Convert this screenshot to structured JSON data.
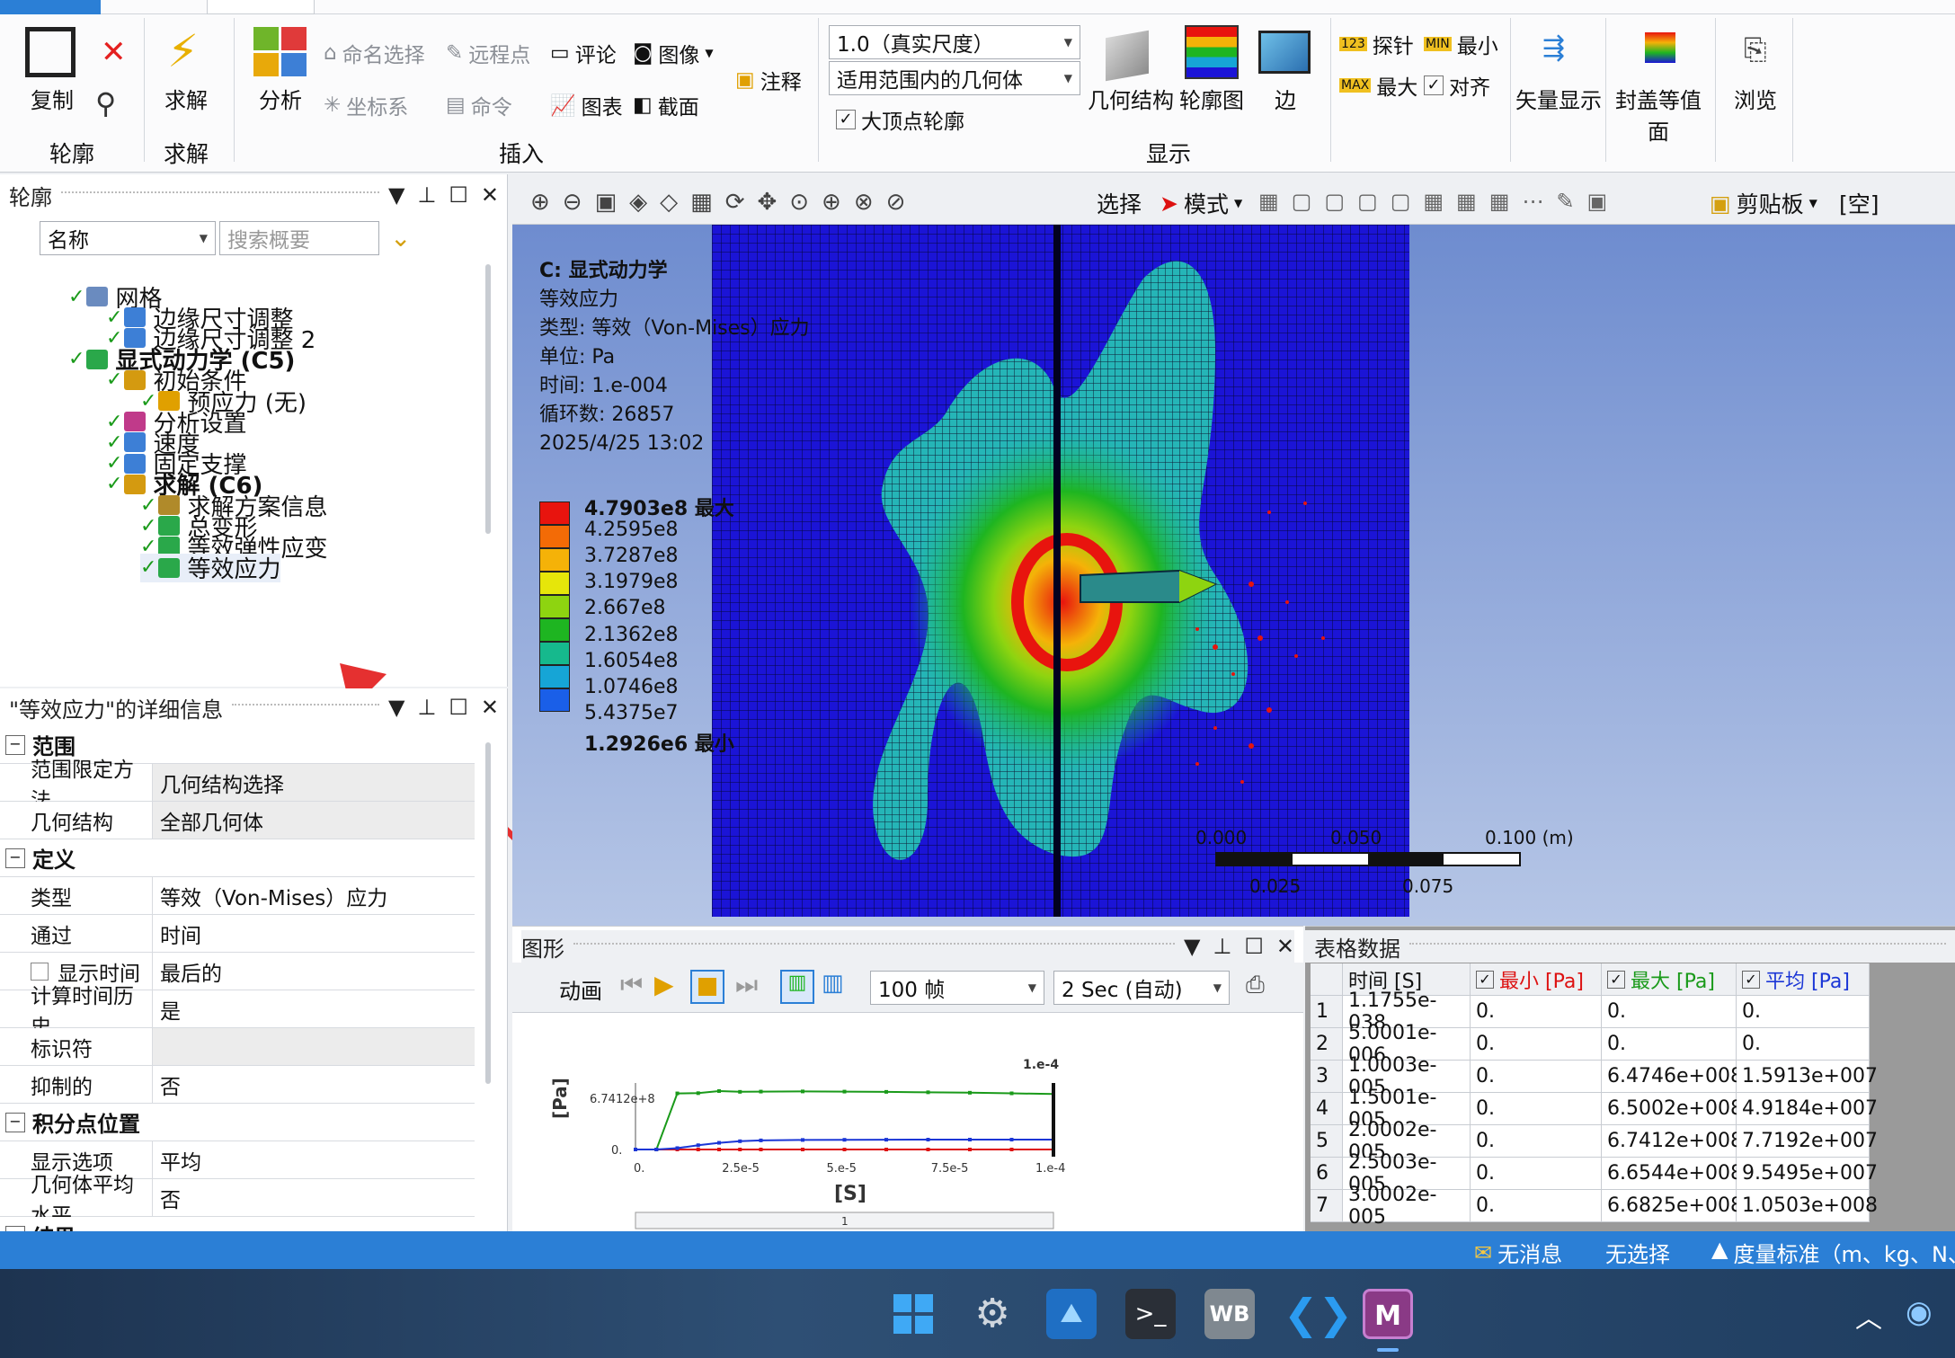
{
  "ribbon": {
    "copy_label": "复制",
    "outline_group": "轮廓",
    "solve_label": "求解",
    "solve_group": "求解",
    "analysis_label": "分析",
    "named_selection": "命名选择",
    "remote_point": "远程点",
    "comment": "评论",
    "image": "图像",
    "coord_system": "坐标系",
    "command": "命令",
    "chart": "图表",
    "section": "截面",
    "annotation": "注释",
    "insert_group": "插入",
    "scale_value": "1.0（真实尺度）",
    "geom_scope": "适用范围内的几何体",
    "big_vertex_outline": "大顶点轮廓",
    "geometry_label": "几何结构",
    "contour_label": "轮廓图",
    "edge_label": "边",
    "display_group": "显示",
    "probe": "探针",
    "min": "最小",
    "max": "最大",
    "align": "对齐",
    "vector_display": "矢量显示",
    "capped_iso": "封盖等值面",
    "browse": "浏览"
  },
  "outline": {
    "title": "轮廓",
    "filter_name": "名称",
    "search_placeholder": "搜索概要",
    "items": [
      {
        "label": "网格",
        "bold": false
      },
      {
        "label": "边缘尺寸调整",
        "bold": false
      },
      {
        "label": "边缘尺寸调整 2",
        "bold": false
      },
      {
        "label": "显式动力学 (C5)",
        "bold": true
      },
      {
        "label": "初始条件",
        "bold": false
      },
      {
        "label": "预应力 (无)",
        "bold": false
      },
      {
        "label": "分析设置",
        "bold": false
      },
      {
        "label": "速度",
        "bold": false
      },
      {
        "label": "固定支撑",
        "bold": false
      },
      {
        "label": "求解 (C6)",
        "bold": true
      },
      {
        "label": "求解方案信息",
        "bold": false
      },
      {
        "label": "总变形",
        "bold": false
      },
      {
        "label": "等效弹性应变",
        "bold": false
      },
      {
        "label": "等效应力",
        "bold": false
      }
    ]
  },
  "details": {
    "title": "\"等效应力\"的详细信息",
    "sec_scope": "范围",
    "scope_method_k": "范围限定方法",
    "scope_method_v": "几何结构选择",
    "geometry_k": "几何结构",
    "geometry_v": "全部几何体",
    "sec_def": "定义",
    "type_k": "类型",
    "type_v": "等效（Von-Mises）应力",
    "by_k": "通过",
    "by_v": "时间",
    "disp_time_k": "显示时间",
    "disp_time_v": "最后的",
    "calc_hist_k": "计算时间历史",
    "calc_hist_v": "是",
    "identifier_k": "标识符",
    "identifier_v": "",
    "suppressed_k": "抑制的",
    "suppressed_v": "否",
    "sec_ip": "积分点位置",
    "disp_opt_k": "显示选项",
    "disp_opt_v": "平均",
    "avg_k": "几何体平均水平",
    "avg_v": "否",
    "sec_result": "结果"
  },
  "toolbar2": {
    "select": "选择",
    "mode": "模式",
    "clipboard": "剪贴板",
    "empty": "[空]"
  },
  "viewport": {
    "title": "C: 显式动力学",
    "line1": "等效应力",
    "line2": "类型: 等效（Von-Mises）应力",
    "line3": "单位: Pa",
    "line4": "时间: 1.e-004",
    "line5": "循环数: 26857",
    "line6": "2025/4/25 13:02",
    "legend": [
      "4.7903e8 最大",
      "4.2595e8",
      "3.7287e8",
      "3.1979e8",
      "2.667e8",
      "2.1362e8",
      "1.6054e8",
      "1.0746e8",
      "5.4375e7",
      "1.2926e6 最小"
    ],
    "legend_colors": [
      "#e8140e",
      "#f36b06",
      "#f5b208",
      "#e6e60a",
      "#8ed410",
      "#1eb521",
      "#16b98d",
      "#16a5d6",
      "#1a5fe8",
      "#1b14d6"
    ],
    "scale_0": "0.000",
    "scale_1": "0.050",
    "scale_2": "0.100 (m)",
    "scale_3": "0.025",
    "scale_4": "0.075"
  },
  "graph": {
    "title": "图形",
    "animation": "动画",
    "frames": "100 帧",
    "duration": "2 Sec (自动)",
    "y_unit": "[Pa]",
    "y_top": "6.7412e+8",
    "y_zero": "0.",
    "x_unit": "[S]",
    "x_ticks": [
      "0.",
      "2.5e-5",
      "5.e-5",
      "7.5e-5",
      "1.e-4"
    ],
    "cursor_label": "1.e-4",
    "slider_label": "1"
  },
  "table": {
    "title": "表格数据",
    "headers": [
      "",
      "时间 [S]",
      "最小 [Pa]",
      "最大 [Pa]",
      "平均 [Pa]"
    ],
    "header_colors": [
      "#111",
      "#111",
      "#d11",
      "#1a9a1a",
      "#1b36d6"
    ],
    "rows": [
      [
        "1",
        "1.1755e-038",
        "0.",
        "0.",
        "0."
      ],
      [
        "2",
        "5.0001e-006",
        "0.",
        "0.",
        "0."
      ],
      [
        "3",
        "1.0003e-005",
        "0.",
        "6.4746e+008",
        "1.5913e+007"
      ],
      [
        "4",
        "1.5001e-005",
        "0.",
        "6.5002e+008",
        "4.9184e+007"
      ],
      [
        "5",
        "2.0002e-005",
        "0.",
        "6.7412e+008",
        "7.7192e+007"
      ],
      [
        "6",
        "2.5003e-005",
        "0.",
        "6.6544e+008",
        "9.5495e+007"
      ],
      [
        "7",
        "3.0002e-005",
        "0.",
        "6.6825e+008",
        "1.0503e+008"
      ]
    ]
  },
  "chart_data": {
    "type": "line",
    "x": [
      0,
      5e-06,
      1e-05,
      1.5e-05,
      2e-05,
      2.5e-05,
      3e-05,
      4e-05,
      5e-05,
      6e-05,
      7e-05,
      8e-05,
      9e-05,
      0.0001
    ],
    "series": [
      {
        "name": "最小 [Pa]",
        "color": "#d11",
        "values": [
          0,
          0,
          0,
          0,
          0,
          0,
          0,
          0,
          0,
          0,
          0,
          0,
          0,
          0
        ]
      },
      {
        "name": "最大 [Pa]",
        "color": "#1a9a1a",
        "values": [
          0,
          0,
          647460000,
          650020000,
          674120000,
          665440000,
          668250000,
          670000000,
          668000000,
          665000000,
          660000000,
          655000000,
          648000000,
          640000000
        ]
      },
      {
        "name": "平均 [Pa]",
        "color": "#1b36d6",
        "values": [
          0,
          0,
          15913000,
          49184000,
          77192000,
          95495000,
          105030000,
          110000000,
          112000000,
          113000000,
          114000000,
          114000000,
          114000000,
          114000000
        ]
      }
    ],
    "ylim": [
      0,
      674120000
    ],
    "xlim": [
      0,
      0.0001
    ],
    "xlabel": "[S]",
    "ylabel": "[Pa]"
  },
  "status": {
    "messages": "无消息",
    "selection": "无选择",
    "units": "度量标准（m、kg、N、s"
  }
}
